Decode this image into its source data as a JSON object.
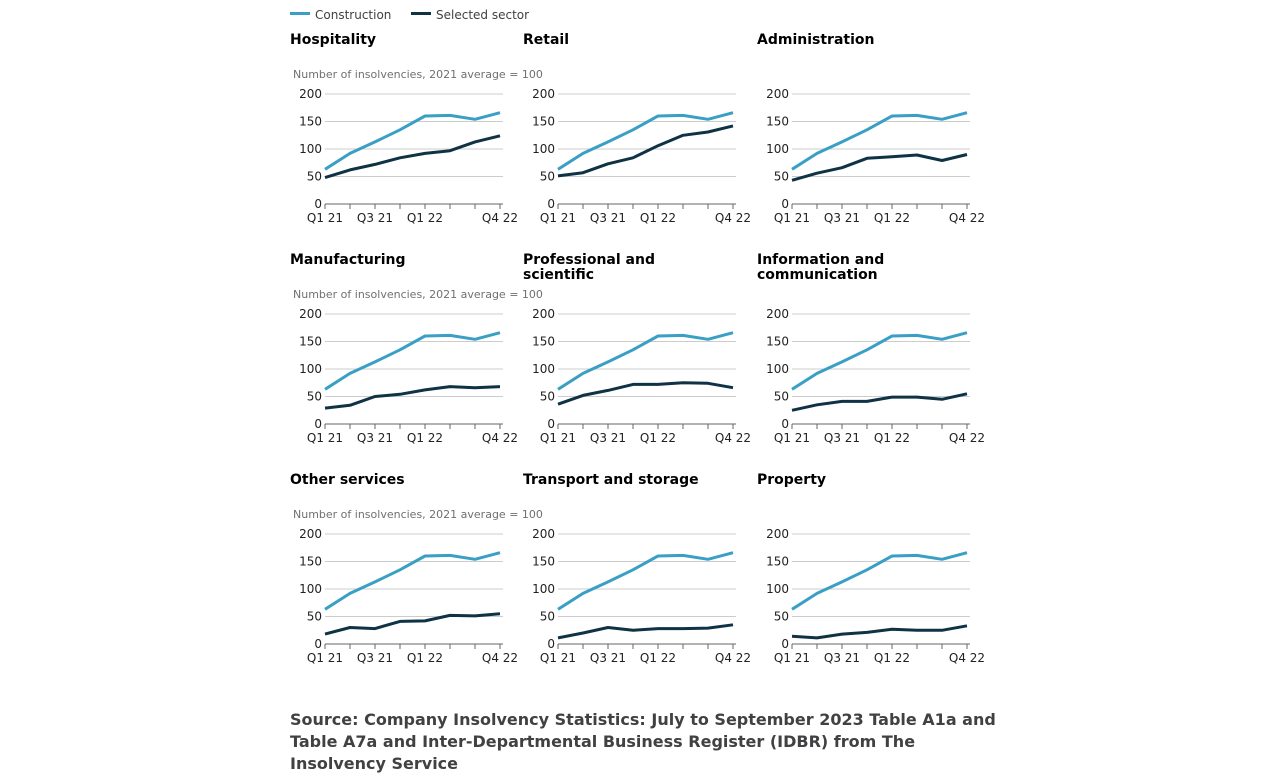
{
  "legend": {
    "construction": "Construction",
    "selected": "Selected sector"
  },
  "colors": {
    "construction": "#3a9fc4",
    "selected": "#0f3245",
    "grid": "#cccccc",
    "axis": "#666666"
  },
  "source": "Source: Company Insolvency Statistics: July to September 2023 Table A1a and Table A7a and Inter-Departmental Business Register (IDBR) from The Insolvency Service",
  "chart_data": [
    {
      "type": "line",
      "title": "Hospitality",
      "ylabel": "Number of insolvencies, 2021 average = 100",
      "ylim": [
        0,
        200
      ],
      "yticks": [
        0,
        50,
        100,
        150,
        200
      ],
      "x": [
        "Q1 21",
        "Q2 21",
        "Q3 21",
        "Q4 21",
        "Q1 22",
        "Q2 22",
        "Q3 22",
        "Q4 22"
      ],
      "xtick_labels": [
        "Q1 21",
        "",
        "Q3 21",
        "",
        "Q1 22",
        "",
        "",
        "Q4 22"
      ],
      "series": [
        {
          "name": "Construction",
          "values": [
            63,
            92,
            113,
            135,
            160,
            161,
            154,
            166
          ]
        },
        {
          "name": "Selected sector",
          "values": [
            48,
            62,
            72,
            84,
            92,
            97,
            113,
            124
          ]
        }
      ]
    },
    {
      "type": "line",
      "title": "Retail",
      "ylabel": "",
      "ylim": [
        0,
        200
      ],
      "yticks": [
        0,
        50,
        100,
        150,
        200
      ],
      "x": [
        "Q1 21",
        "Q2 21",
        "Q3 21",
        "Q4 21",
        "Q1 22",
        "Q2 22",
        "Q3 22",
        "Q4 22"
      ],
      "xtick_labels": [
        "Q1 21",
        "",
        "Q3 21",
        "",
        "Q1 22",
        "",
        "",
        "Q4 22"
      ],
      "series": [
        {
          "name": "Construction",
          "values": [
            63,
            92,
            113,
            135,
            160,
            161,
            154,
            166
          ]
        },
        {
          "name": "Selected sector",
          "values": [
            51,
            57,
            73,
            84,
            106,
            125,
            131,
            142
          ]
        }
      ]
    },
    {
      "type": "line",
      "title": "Administration",
      "ylabel": "",
      "ylim": [
        0,
        200
      ],
      "yticks": [
        0,
        50,
        100,
        150,
        200
      ],
      "x": [
        "Q1 21",
        "Q2 21",
        "Q3 21",
        "Q4 21",
        "Q1 22",
        "Q2 22",
        "Q3 22",
        "Q4 22"
      ],
      "xtick_labels": [
        "Q1 21",
        "",
        "Q3 21",
        "",
        "Q1 22",
        "",
        "",
        "Q4 22"
      ],
      "series": [
        {
          "name": "Construction",
          "values": [
            63,
            92,
            113,
            135,
            160,
            161,
            154,
            166
          ]
        },
        {
          "name": "Selected sector",
          "values": [
            43,
            56,
            66,
            83,
            86,
            89,
            79,
            90
          ]
        }
      ]
    },
    {
      "type": "line",
      "title": "Manufacturing",
      "ylabel": "Number of insolvencies, 2021 average = 100",
      "ylim": [
        0,
        200
      ],
      "yticks": [
        0,
        50,
        100,
        150,
        200
      ],
      "x": [
        "Q1 21",
        "Q2 21",
        "Q3 21",
        "Q4 21",
        "Q1 22",
        "Q2 22",
        "Q3 22",
        "Q4 22"
      ],
      "xtick_labels": [
        "Q1 21",
        "",
        "Q3 21",
        "",
        "Q1 22",
        "",
        "",
        "Q4 22"
      ],
      "series": [
        {
          "name": "Construction",
          "values": [
            63,
            92,
            113,
            135,
            160,
            161,
            154,
            166
          ]
        },
        {
          "name": "Selected sector",
          "values": [
            29,
            34,
            50,
            54,
            62,
            68,
            66,
            68
          ]
        }
      ]
    },
    {
      "type": "line",
      "title": "Professional and scientific",
      "ylabel": "",
      "ylim": [
        0,
        200
      ],
      "yticks": [
        0,
        50,
        100,
        150,
        200
      ],
      "x": [
        "Q1 21",
        "Q2 21",
        "Q3 21",
        "Q4 21",
        "Q1 22",
        "Q2 22",
        "Q3 22",
        "Q4 22"
      ],
      "xtick_labels": [
        "Q1 21",
        "",
        "Q3 21",
        "",
        "Q1 22",
        "",
        "",
        "Q4 22"
      ],
      "series": [
        {
          "name": "Construction",
          "values": [
            63,
            92,
            113,
            135,
            160,
            161,
            154,
            166
          ]
        },
        {
          "name": "Selected sector",
          "values": [
            36,
            52,
            61,
            72,
            72,
            75,
            74,
            66
          ]
        }
      ]
    },
    {
      "type": "line",
      "title": "Information and communication",
      "ylabel": "",
      "ylim": [
        0,
        200
      ],
      "yticks": [
        0,
        50,
        100,
        150,
        200
      ],
      "x": [
        "Q1 21",
        "Q2 21",
        "Q3 21",
        "Q4 21",
        "Q1 22",
        "Q2 22",
        "Q3 22",
        "Q4 22"
      ],
      "xtick_labels": [
        "Q1 21",
        "",
        "Q3 21",
        "",
        "Q1 22",
        "",
        "",
        "Q4 22"
      ],
      "series": [
        {
          "name": "Construction",
          "values": [
            63,
            92,
            113,
            135,
            160,
            161,
            154,
            166
          ]
        },
        {
          "name": "Selected sector",
          "values": [
            25,
            35,
            41,
            41,
            49,
            49,
            45,
            55
          ]
        }
      ]
    },
    {
      "type": "line",
      "title": "Other services",
      "ylabel": "Number of insolvencies, 2021 average = 100",
      "ylim": [
        0,
        200
      ],
      "yticks": [
        0,
        50,
        100,
        150,
        200
      ],
      "x": [
        "Q1 21",
        "Q2 21",
        "Q3 21",
        "Q4 21",
        "Q1 22",
        "Q2 22",
        "Q3 22",
        "Q4 22"
      ],
      "xtick_labels": [
        "Q1 21",
        "",
        "Q3 21",
        "",
        "Q1 22",
        "",
        "",
        "Q4 22"
      ],
      "series": [
        {
          "name": "Construction",
          "values": [
            63,
            92,
            113,
            135,
            160,
            161,
            154,
            166
          ]
        },
        {
          "name": "Selected sector",
          "values": [
            18,
            30,
            28,
            41,
            42,
            52,
            51,
            55
          ]
        }
      ]
    },
    {
      "type": "line",
      "title": "Transport and storage",
      "ylabel": "",
      "ylim": [
        0,
        200
      ],
      "yticks": [
        0,
        50,
        100,
        150,
        200
      ],
      "x": [
        "Q1 21",
        "Q2 21",
        "Q3 21",
        "Q4 21",
        "Q1 22",
        "Q2 22",
        "Q3 22",
        "Q4 22"
      ],
      "xtick_labels": [
        "Q1 21",
        "",
        "Q3 21",
        "",
        "Q1 22",
        "",
        "",
        "Q4 22"
      ],
      "series": [
        {
          "name": "Construction",
          "values": [
            63,
            92,
            113,
            135,
            160,
            161,
            154,
            166
          ]
        },
        {
          "name": "Selected sector",
          "values": [
            11,
            20,
            30,
            25,
            28,
            28,
            29,
            35
          ]
        }
      ]
    },
    {
      "type": "line",
      "title": "Property",
      "ylabel": "",
      "ylim": [
        0,
        200
      ],
      "yticks": [
        0,
        50,
        100,
        150,
        200
      ],
      "x": [
        "Q1 21",
        "Q2 21",
        "Q3 21",
        "Q4 21",
        "Q1 22",
        "Q2 22",
        "Q3 22",
        "Q4 22"
      ],
      "xtick_labels": [
        "Q1 21",
        "",
        "Q3 21",
        "",
        "Q1 22",
        "",
        "",
        "Q4 22"
      ],
      "series": [
        {
          "name": "Construction",
          "values": [
            63,
            92,
            113,
            135,
            160,
            161,
            154,
            166
          ]
        },
        {
          "name": "Selected sector",
          "values": [
            14,
            11,
            18,
            21,
            27,
            25,
            25,
            33
          ]
        }
      ]
    }
  ]
}
